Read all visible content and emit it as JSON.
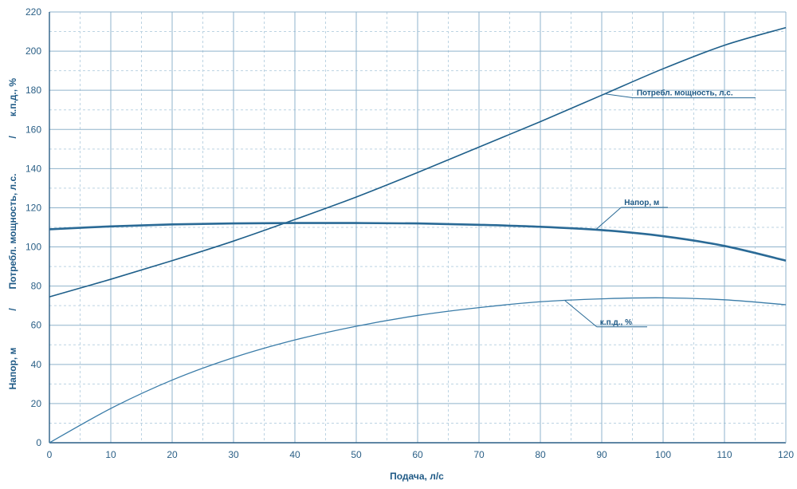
{
  "chart_data": {
    "type": "line",
    "xlabel": "Подача,  л/с",
    "ylabel_parts": [
      "Напор, м",
      "/",
      "Потребл. мощность,  л.с.",
      "/",
      "к.п.д., %"
    ],
    "xlim": [
      0,
      120
    ],
    "ylim": [
      0,
      220
    ],
    "x_ticks": [
      0,
      10,
      20,
      30,
      40,
      50,
      60,
      70,
      80,
      90,
      100,
      110,
      120
    ],
    "y_ticks": [
      0,
      20,
      40,
      60,
      80,
      100,
      120,
      140,
      160,
      180,
      200,
      220
    ],
    "grid": true,
    "series": [
      {
        "name": "Потребл. мощность, л.с.",
        "x": [
          0,
          10,
          20,
          30,
          40,
          50,
          60,
          70,
          80,
          90,
          100,
          110,
          120
        ],
        "y": [
          74.5,
          83.5,
          93,
          103,
          114,
          125.5,
          138,
          151,
          164,
          177.5,
          191,
          203,
          212
        ],
        "color": "#1e5f8a"
      },
      {
        "name": "Напор, м",
        "x": [
          0,
          10,
          20,
          30,
          40,
          50,
          60,
          70,
          80,
          90,
          100,
          110,
          120
        ],
        "y": [
          109,
          110.5,
          111.5,
          112,
          112.2,
          112.2,
          112,
          111.3,
          110.3,
          108.6,
          105.5,
          100.5,
          93
        ],
        "color": "#2a6a96"
      },
      {
        "name": "к.п.д., %",
        "x": [
          0,
          10,
          20,
          30,
          40,
          50,
          60,
          70,
          80,
          90,
          100,
          110,
          120
        ],
        "y": [
          0,
          17.5,
          32,
          43.5,
          52.5,
          59.5,
          65,
          69,
          72,
          73.5,
          74,
          73,
          70.5
        ],
        "color": "#3a7ca8"
      }
    ],
    "annotations": [
      {
        "text": "Потребл. мощность, л.с.",
        "series": "Потребл. мощность, л.с.",
        "at_x": 90.5
      },
      {
        "text": "Напор, м",
        "series": "Напор, м",
        "at_x": 89
      },
      {
        "text": "к.п.д., %",
        "series": "к.п.д., %",
        "at_x": 84
      }
    ]
  }
}
